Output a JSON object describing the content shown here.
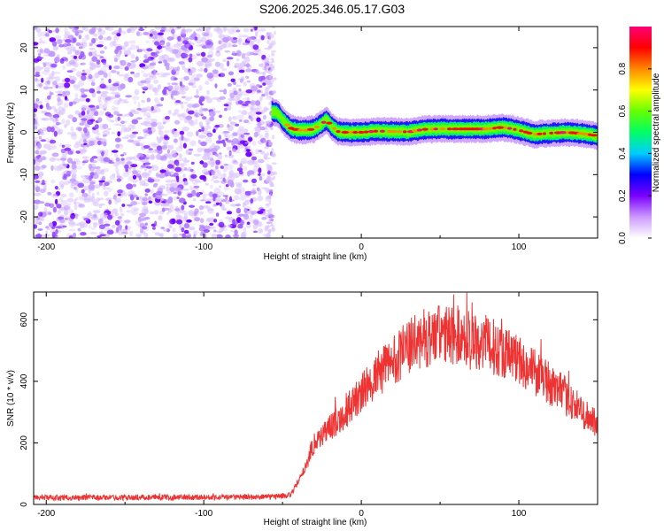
{
  "title": "S206.2025.346.05.17.G03",
  "chart_data": [
    {
      "type": "heatmap",
      "name": "spectrogram",
      "xlabel": "Height of straight line (km)",
      "ylabel": "Frequency (Hz)",
      "xlim": [
        -208,
        150
      ],
      "ylim": [
        -25,
        25
      ],
      "xticks": [
        -200,
        -100,
        0,
        100
      ],
      "yticks": [
        -20,
        -10,
        0,
        10,
        20
      ],
      "noise_region_x": [
        -208,
        -57
      ],
      "signal_trace": {
        "x": [
          -57,
          -53,
          -49,
          -45,
          -40,
          -35,
          -30,
          -25,
          -22,
          -19,
          -15,
          -10,
          -5,
          0,
          10,
          20,
          30,
          40,
          50,
          60,
          70,
          80,
          90,
          100,
          110,
          120,
          130,
          140,
          150
        ],
        "freq": [
          5,
          4.5,
          2.5,
          1.0,
          0.5,
          0.5,
          0.8,
          2.0,
          3.0,
          1.5,
          0.2,
          0.0,
          0.0,
          0.0,
          0.3,
          0.2,
          0.1,
          0.7,
          0.8,
          0.8,
          0.8,
          0.8,
          1.2,
          0.5,
          -0.5,
          -0.2,
          0.0,
          -0.3,
          -0.8
        ]
      },
      "colorbar": {
        "label": "Normalized spectral amplitude",
        "range": [
          0.0,
          1.0
        ],
        "ticks": [
          0.0,
          0.2,
          0.4,
          0.6,
          0.8
        ],
        "tick_labels": [
          "0.0",
          "0.2",
          "0.4",
          "0.6",
          "0.8"
        ],
        "colors": [
          "#ffffff",
          "#cc99ff",
          "#7a00ff",
          "#0000ff",
          "#00ccff",
          "#00ff66",
          "#66ff00",
          "#ffff00",
          "#ff8800",
          "#ff0000",
          "#ff0077"
        ]
      }
    },
    {
      "type": "line",
      "name": "snr",
      "xlabel": "Height of straight line (km)",
      "ylabel": "SNR (10 * v/v)",
      "xlim": [
        -208,
        150
      ],
      "ylim": [
        0,
        690
      ],
      "xticks": [
        -200,
        -100,
        0,
        100
      ],
      "yticks": [
        0,
        200,
        400,
        600
      ],
      "color": "#ee3333",
      "envelope": {
        "x": [
          -208,
          -60,
          -45,
          -38,
          -30,
          -20,
          -10,
          0,
          10,
          20,
          30,
          40,
          50,
          60,
          70,
          80,
          90,
          100,
          110,
          120,
          130,
          140,
          150
        ],
        "snr": [
          22,
          24,
          30,
          90,
          200,
          250,
          300,
          360,
          420,
          470,
          510,
          540,
          550,
          550,
          540,
          520,
          500,
          470,
          430,
          390,
          350,
          300,
          260
        ]
      }
    }
  ]
}
